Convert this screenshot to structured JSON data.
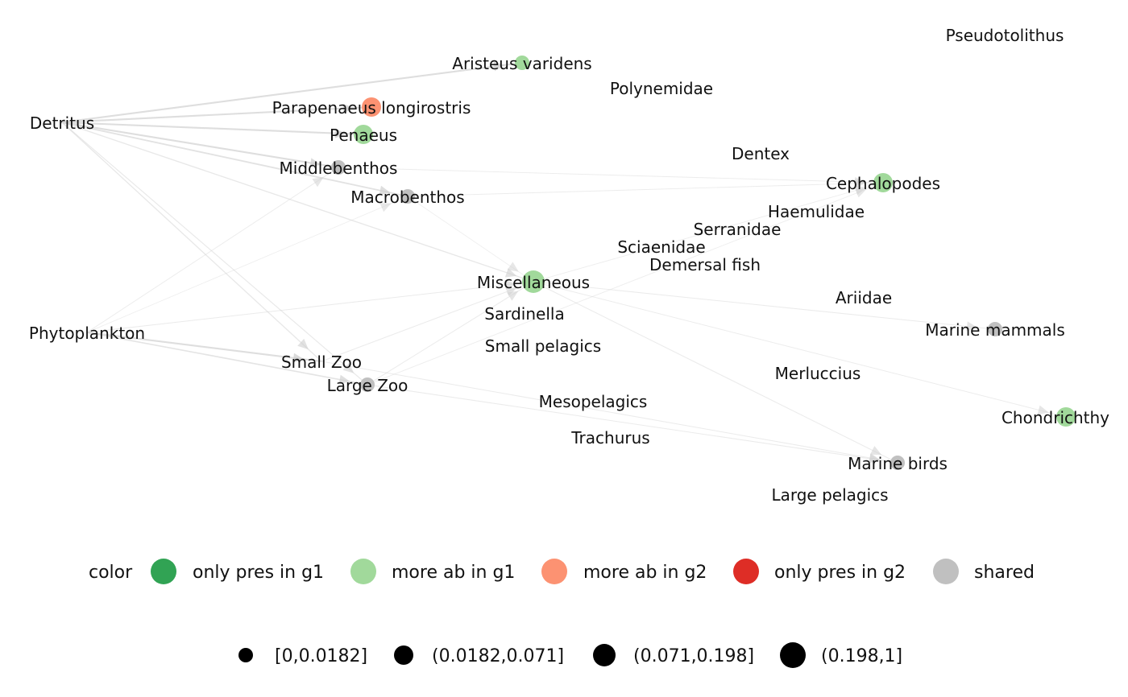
{
  "network": {
    "nodes": [
      {
        "id": "detritus",
        "label": "Detritus",
        "color": "none"
      },
      {
        "id": "aristeus",
        "label": "Aristeus varidens",
        "color": "more ab in g1",
        "size_class": "[0,0.0182]"
      },
      {
        "id": "parapenaeus",
        "label": "Parapenaeus longirostris",
        "color": "more ab in g2",
        "size_class": "(0.0182,0.071]"
      },
      {
        "id": "penaeus",
        "label": "Penaeus",
        "color": "more ab in g1",
        "size_class": "(0.0182,0.071]"
      },
      {
        "id": "middlebenthos",
        "label": "Middlebenthos",
        "color": "shared",
        "size_class": "[0,0.0182]"
      },
      {
        "id": "macrobenthos",
        "label": "Macrobenthos",
        "color": "shared",
        "size_class": "[0,0.0182]"
      },
      {
        "id": "polynemidae",
        "label": "Polynemidae",
        "color": "none"
      },
      {
        "id": "pseudotolithus",
        "label": "Pseudotolithus",
        "color": "none"
      },
      {
        "id": "dentex",
        "label": "Dentex",
        "color": "none"
      },
      {
        "id": "cephalopodes",
        "label": "Cephalopodes",
        "color": "more ab in g1",
        "size_class": "(0.0182,0.071]"
      },
      {
        "id": "haemulidae",
        "label": "Haemulidae",
        "color": "none"
      },
      {
        "id": "serranidae",
        "label": "Serranidae",
        "color": "none"
      },
      {
        "id": "sciaenidae",
        "label": "Sciaenidae",
        "color": "none"
      },
      {
        "id": "demersal",
        "label": "Demersal fish",
        "color": "none"
      },
      {
        "id": "miscellaneous",
        "label": "Miscellaneous",
        "color": "more ab in g1",
        "size_class": "(0.071,0.198]"
      },
      {
        "id": "sardinella",
        "label": "Sardinella",
        "color": "none"
      },
      {
        "id": "ariidae",
        "label": "Ariidae",
        "color": "none"
      },
      {
        "id": "marine_mammals",
        "label": "Marine mammals",
        "color": "shared",
        "size_class": "[0,0.0182]"
      },
      {
        "id": "phytoplankton",
        "label": "Phytoplankton",
        "color": "none"
      },
      {
        "id": "small_pelagics",
        "label": "Small pelagics",
        "color": "none"
      },
      {
        "id": "small_zoo",
        "label": "Small Zoo",
        "color": "none"
      },
      {
        "id": "large_zoo",
        "label": "Large Zoo",
        "color": "shared",
        "size_class": "[0,0.0182]"
      },
      {
        "id": "merluccius",
        "label": "Merluccius",
        "color": "none"
      },
      {
        "id": "mesopelagics",
        "label": "Mesopelagics",
        "color": "none"
      },
      {
        "id": "chondrichthy",
        "label": "Chondrichthy",
        "color": "more ab in g1",
        "size_class": "(0.0182,0.071]"
      },
      {
        "id": "trachurus",
        "label": "Trachurus",
        "color": "none"
      },
      {
        "id": "marine_birds",
        "label": "Marine birds",
        "color": "shared",
        "size_class": "[0,0.0182]"
      },
      {
        "id": "large_pelagics",
        "label": "Large pelagics",
        "color": "none"
      }
    ],
    "edges": [
      {
        "from": "detritus",
        "to": "aristeus",
        "weight": 0.5
      },
      {
        "from": "detritus",
        "to": "parapenaeus",
        "weight": 0.5
      },
      {
        "from": "detritus",
        "to": "penaeus",
        "weight": 0.5
      },
      {
        "from": "detritus",
        "to": "middlebenthos",
        "weight": 0.5
      },
      {
        "from": "detritus",
        "to": "macrobenthos",
        "weight": 0.4
      },
      {
        "from": "detritus",
        "to": "miscellaneous",
        "weight": 0.25
      },
      {
        "from": "detritus",
        "to": "small_zoo",
        "weight": 0.25
      },
      {
        "from": "detritus",
        "to": "large_zoo",
        "weight": 0.2
      },
      {
        "from": "phytoplankton",
        "to": "small_zoo",
        "weight": 0.5
      },
      {
        "from": "phytoplankton",
        "to": "large_zoo",
        "weight": 0.35
      },
      {
        "from": "phytoplankton",
        "to": "middlebenthos",
        "weight": 0.12
      },
      {
        "from": "phytoplankton",
        "to": "macrobenthos",
        "weight": 0.08
      },
      {
        "from": "phytoplankton",
        "to": "miscellaneous",
        "weight": 0.15
      },
      {
        "from": "middlebenthos",
        "to": "cephalopodes",
        "weight": 0.12
      },
      {
        "from": "macrobenthos",
        "to": "cephalopodes",
        "weight": 0.12
      },
      {
        "from": "macrobenthos",
        "to": "miscellaneous",
        "weight": 0.08
      },
      {
        "from": "small_zoo",
        "to": "miscellaneous",
        "weight": 0.15
      },
      {
        "from": "large_zoo",
        "to": "miscellaneous",
        "weight": 0.15
      },
      {
        "from": "large_zoo",
        "to": "cephalopodes",
        "weight": 0.1
      },
      {
        "from": "miscellaneous",
        "to": "cephalopodes",
        "weight": 0.1
      },
      {
        "from": "miscellaneous",
        "to": "marine_mammals",
        "weight": 0.15
      },
      {
        "from": "miscellaneous",
        "to": "marine_birds",
        "weight": 0.15
      },
      {
        "from": "miscellaneous",
        "to": "chondrichthy",
        "weight": 0.12
      },
      {
        "from": "small_zoo",
        "to": "marine_birds",
        "weight": 0.15
      },
      {
        "from": "large_zoo",
        "to": "marine_birds",
        "weight": 0.15
      }
    ]
  },
  "legend": {
    "color_title": "color",
    "color_items": [
      {
        "label": "only pres in g1",
        "color": "#31a354"
      },
      {
        "label": "more ab in g1",
        "color": "#a1d99b"
      },
      {
        "label": "more ab in g2",
        "color": "#fc9272"
      },
      {
        "label": "only pres in g2",
        "color": "#de2d26"
      },
      {
        "label": "shared",
        "color": "#c0c0c0"
      }
    ],
    "size_items": [
      {
        "label": "[0,0.0182]"
      },
      {
        "label": "(0.0182,0.071]"
      },
      {
        "label": "(0.071,0.198]"
      },
      {
        "label": "(0.198,1]"
      }
    ]
  }
}
